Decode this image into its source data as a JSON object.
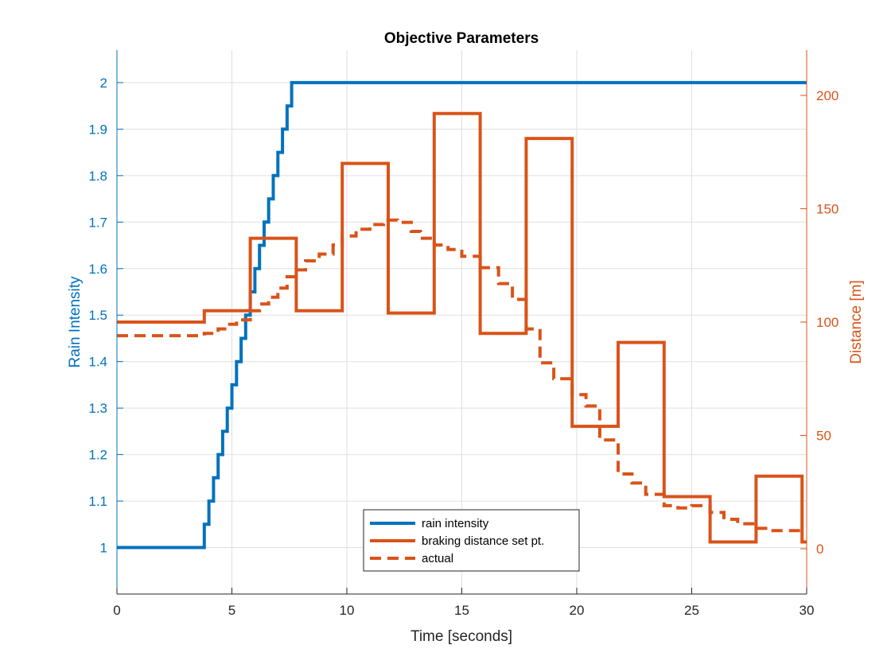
{
  "chart_data": {
    "type": "line",
    "title": "Objective Parameters",
    "xlabel": "Time [seconds]",
    "ylabel_left": "Rain Intensity",
    "ylabel_right": "Distance [m]",
    "xlim": [
      0,
      30
    ],
    "ylim_left": [
      0.9,
      2.07
    ],
    "ylim_right": [
      -20,
      220
    ],
    "x_ticks": [
      0,
      5,
      10,
      15,
      20,
      25,
      30
    ],
    "y_ticks_left": [
      1,
      1.1,
      1.2,
      1.3,
      1.4,
      1.5,
      1.6,
      1.7,
      1.8,
      1.9,
      2
    ],
    "y_ticks_right": [
      0,
      50,
      100,
      150,
      200
    ],
    "grid": true,
    "legend_position": "bottom-center",
    "colors": {
      "rain": "#0072BD",
      "distance": "#D95319",
      "axis_left": "#0072BD",
      "axis_right": "#D95319"
    },
    "series": [
      {
        "name": "rain intensity",
        "axis": "left",
        "style": "solid",
        "shape": "step",
        "x": [
          0,
          3.8,
          4.0,
          4.2,
          4.4,
          4.6,
          4.8,
          5.0,
          5.2,
          5.4,
          5.6,
          5.8,
          6.0,
          6.2,
          6.4,
          6.6,
          6.8,
          7.0,
          7.2,
          7.4,
          7.6,
          30
        ],
        "y": [
          1.0,
          1.05,
          1.1,
          1.15,
          1.2,
          1.25,
          1.3,
          1.35,
          1.4,
          1.45,
          1.5,
          1.55,
          1.6,
          1.65,
          1.7,
          1.75,
          1.8,
          1.85,
          1.9,
          1.95,
          2.0,
          2.0
        ]
      },
      {
        "name": "braking distance set pt.",
        "axis": "right",
        "style": "solid",
        "shape": "step",
        "x": [
          0,
          3.8,
          5.8,
          7.8,
          9.8,
          11.8,
          13.8,
          15.8,
          17.8,
          19.8,
          21.8,
          23.8,
          25.8,
          27.8,
          29.8,
          30
        ],
        "y": [
          100,
          105,
          137,
          105,
          170,
          104,
          192,
          95,
          181,
          54,
          91,
          23,
          3,
          32,
          3,
          3
        ]
      },
      {
        "name": "actual",
        "axis": "right",
        "style": "dashed",
        "shape": "step",
        "x": [
          0,
          3.8,
          4.4,
          4.8,
          5.2,
          5.8,
          6.2,
          6.6,
          7.0,
          7.4,
          7.8,
          8.2,
          8.8,
          9.4,
          9.8,
          10.4,
          11.0,
          11.6,
          12.2,
          12.8,
          13.2,
          13.8,
          14.4,
          15.0,
          15.8,
          16.6,
          17.2,
          17.8,
          18.4,
          19.0,
          19.8,
          20.4,
          21.0,
          21.8,
          22.4,
          23.0,
          23.8,
          24.4,
          25.0,
          25.8,
          26.4,
          27.0,
          27.8,
          28.4,
          29.0,
          30
        ],
        "y": [
          94,
          95,
          97,
          99,
          101,
          105,
          108,
          111,
          115,
          120,
          123,
          127,
          130,
          134,
          138,
          141,
          143,
          145,
          144,
          140,
          137,
          134,
          132,
          129,
          124,
          117,
          110,
          97,
          82,
          75,
          68,
          63,
          48,
          33,
          29,
          24,
          19,
          18,
          19,
          16,
          13,
          11,
          9,
          8,
          8,
          8
        ]
      }
    ]
  }
}
